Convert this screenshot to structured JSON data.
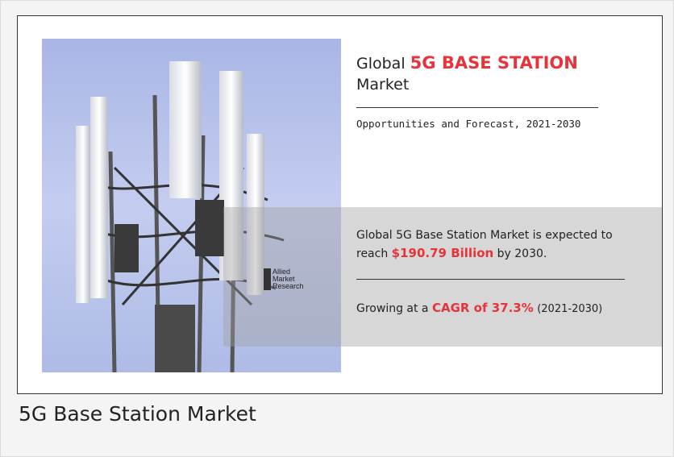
{
  "infographic": {
    "heading": {
      "prefix": "Global",
      "highlight": "5G BASE STATION",
      "suffix": "Market"
    },
    "subtitle": "Opportunities and Forecast, 2021-2030",
    "forecast": {
      "line1": "Global 5G Base Station Market is expected to",
      "prefix": "reach",
      "value": "$190.79 Billion",
      "suffix": "by 2030."
    },
    "growth": {
      "prefix": "Growing at a",
      "value": "CAGR of 37.3%",
      "suffix": "(2021-2030)"
    },
    "logo": [
      "Allied",
      "Market",
      "Research"
    ]
  },
  "caption": "5G Base Station Market"
}
